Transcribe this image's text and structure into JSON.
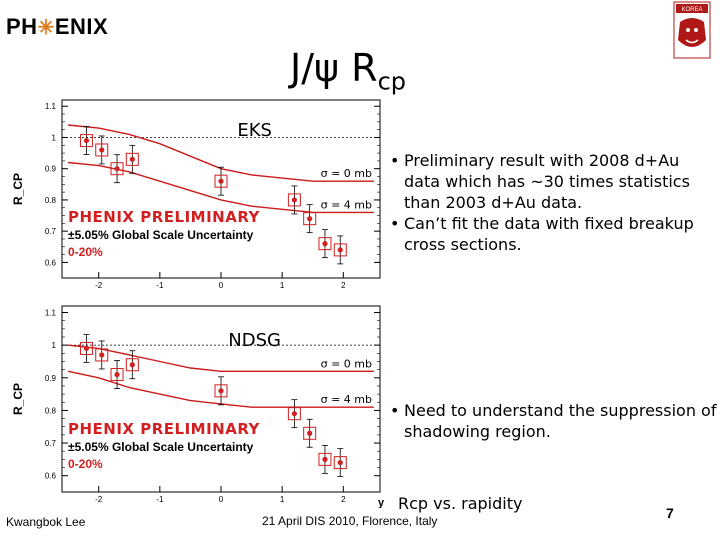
{
  "header": {
    "logo_left_pre": "PH",
    "logo_left_post": "ENIX",
    "logo_right_text": "KOREA",
    "title_main": "J/ψ R",
    "title_sub": "cp"
  },
  "colors": {
    "data": "#d21f1f",
    "curve": "#cc1a1a",
    "accent": "#e07a1f",
    "preliminary": "#d21f1f"
  },
  "chart_data": [
    {
      "type": "scatter",
      "title": "EKS",
      "ylabel": "R_CP",
      "xlim": [
        -2.6,
        2.6
      ],
      "ylim": [
        0.55,
        1.12
      ],
      "xticks": [
        "-2",
        "-1",
        "0",
        "1",
        "2"
      ],
      "yticks": [
        "1.1",
        "1",
        "0.9",
        "0.8",
        "0.7",
        "0.6"
      ],
      "ytick_values": [
        1.1,
        1.0,
        0.9,
        0.8,
        0.7,
        0.6
      ],
      "xtick_values": [
        -2,
        -1,
        0,
        1,
        2
      ],
      "points_x": [
        -2.2,
        -1.95,
        -1.7,
        -1.45,
        0.0,
        1.2,
        1.45,
        1.7,
        1.95
      ],
      "points_y": [
        0.99,
        0.96,
        0.9,
        0.93,
        0.86,
        0.8,
        0.74,
        0.66,
        0.64
      ],
      "curves": [
        {
          "name": "σ = 0 mb",
          "x": [
            -2.5,
            -2.0,
            -1.5,
            -1.0,
            -0.5,
            0.0,
            0.5,
            1.0,
            1.5,
            2.0,
            2.5
          ],
          "y": [
            1.04,
            1.03,
            1.01,
            0.98,
            0.94,
            0.9,
            0.88,
            0.87,
            0.86,
            0.86,
            0.86
          ]
        },
        {
          "name": "σ = 4 mb",
          "x": [
            -2.5,
            -2.0,
            -1.5,
            -1.0,
            -0.5,
            0.0,
            0.5,
            1.0,
            1.5,
            2.0,
            2.5
          ],
          "y": [
            0.92,
            0.91,
            0.89,
            0.86,
            0.83,
            0.8,
            0.78,
            0.77,
            0.76,
            0.76,
            0.76
          ]
        }
      ],
      "preliminary": "PHENIX PRELIMINARY",
      "global_unc": "±5.05% Global Scale Uncertainty",
      "centrality": "0-20%"
    },
    {
      "type": "scatter",
      "title": "NDSG",
      "ylabel": "R_CP",
      "xlim": [
        -2.6,
        2.6
      ],
      "ylim": [
        0.55,
        1.12
      ],
      "xticks": [
        "-2",
        "-1",
        "0",
        "1",
        "2"
      ],
      "yticks": [
        "1.1",
        "1",
        "0.9",
        "0.8",
        "0.7",
        "0.6"
      ],
      "ytick_values": [
        1.1,
        1.0,
        0.9,
        0.8,
        0.7,
        0.6
      ],
      "xtick_values": [
        -2,
        -1,
        0,
        1,
        2
      ],
      "points_x": [
        -2.2,
        -1.95,
        -1.7,
        -1.45,
        0.0,
        1.2,
        1.45,
        1.7,
        1.95
      ],
      "points_y": [
        0.99,
        0.97,
        0.91,
        0.94,
        0.86,
        0.79,
        0.73,
        0.65,
        0.64
      ],
      "curves": [
        {
          "name": "σ = 0 mb",
          "x": [
            -2.5,
            -2.0,
            -1.5,
            -1.0,
            -0.5,
            0.0,
            0.5,
            1.0,
            1.5,
            2.0,
            2.5
          ],
          "y": [
            1.0,
            0.99,
            0.97,
            0.95,
            0.93,
            0.92,
            0.92,
            0.92,
            0.92,
            0.92,
            0.92
          ]
        },
        {
          "name": "σ = 4 mb",
          "x": [
            -2.5,
            -2.0,
            -1.5,
            -1.0,
            -0.5,
            0.0,
            0.5,
            1.0,
            1.5,
            2.0,
            2.5
          ],
          "y": [
            0.92,
            0.9,
            0.87,
            0.85,
            0.83,
            0.82,
            0.81,
            0.81,
            0.81,
            0.81,
            0.81
          ]
        }
      ],
      "preliminary": "PHENIX PRELIMINARY",
      "global_unc": "±5.05% Global Scale Uncertainty",
      "centrality": "0-20%",
      "xlabel": "y"
    }
  ],
  "bullets_top": [
    "Preliminary result with 2008 d+Au data which has ~30 times statistics than 2003 d+Au data.",
    "Can’t fit the data with fixed breakup cross sections."
  ],
  "bullets_bottom": [
    "Need to understand the suppression of shadowing region."
  ],
  "rcp_note": "Rcp vs. rapidity",
  "footer": {
    "author": "Kwangbok Lee",
    "venue": "21 April DIS 2010, Florence, Italy",
    "page": "7"
  }
}
